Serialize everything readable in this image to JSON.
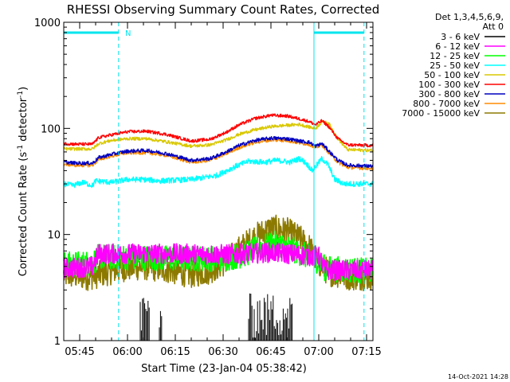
{
  "chart_data": {
    "type": "line",
    "title": "RHESSI Observing Summary Count Rates, Corrected",
    "xlabel": "Start Time (23-Jan-04 05:38:42)",
    "ylabel_main": "Corrected Count Rate (s",
    "ylabel_sup1": "-1",
    "ylabel_mid": " detector",
    "ylabel_sup2": "-1",
    "ylabel_end": ")",
    "yscale": "log",
    "ylim": [
      1,
      1000
    ],
    "xlim_min": [
      340,
      437
    ],
    "x_ticks": [
      {
        "value": 345,
        "label": "05:45"
      },
      {
        "value": 360,
        "label": "06:00"
      },
      {
        "value": 375,
        "label": "06:15"
      },
      {
        "value": 390,
        "label": "06:30"
      },
      {
        "value": 405,
        "label": "06:45"
      },
      {
        "value": 420,
        "label": "07:00"
      },
      {
        "value": 435,
        "label": "07:15"
      }
    ],
    "y_ticks": [
      {
        "value": 1,
        "label": "1"
      },
      {
        "value": 10,
        "label": "10"
      },
      {
        "value": 100,
        "label": "100"
      },
      {
        "value": 1000,
        "label": "1000"
      }
    ],
    "legend_header": [
      "Det 1,3,4,5,6,9,",
      "Att 0"
    ],
    "timestamp": "14-Oct-2021 14:28",
    "night_flag": "N",
    "markers": {
      "solid": [
        418.5
      ],
      "dashed": [
        357.2,
        434.2
      ],
      "night_bars": [
        [
          340,
          357.2
        ],
        [
          418.5,
          434.2
        ]
      ],
      "color": "#00e5ee"
    },
    "series": [
      {
        "name": "3 - 6 keV",
        "color": "#000000",
        "points": [
          [
            340,
            1
          ],
          [
            437,
            1
          ]
        ],
        "bursts": [
          [
            364,
            367
          ],
          [
            370,
            371
          ],
          [
            398,
            412
          ]
        ],
        "burst_range": [
          1,
          2.8
        ]
      },
      {
        "name": "6 - 12 keV",
        "color": "#ff00ff",
        "points": [
          [
            340,
            4.8
          ],
          [
            349,
            5
          ],
          [
            351,
            6.6
          ],
          [
            370,
            6.6
          ],
          [
            390,
            6.5
          ],
          [
            398,
            6.6
          ],
          [
            405,
            6.8
          ],
          [
            410,
            6.6
          ],
          [
            415,
            6.4
          ],
          [
            420,
            6.2
          ],
          [
            422,
            4.6
          ],
          [
            437,
            4.6
          ]
        ]
      },
      {
        "name": "12 - 25 keV",
        "color": "#00ff00",
        "points": [
          [
            340,
            5.2
          ],
          [
            349,
            5.4
          ],
          [
            351,
            6.2
          ],
          [
            370,
            6.0
          ],
          [
            390,
            5.9
          ],
          [
            396,
            6.4
          ],
          [
            402,
            7.6
          ],
          [
            406,
            8.2
          ],
          [
            411,
            7.4
          ],
          [
            415,
            6.5
          ],
          [
            420,
            5.6
          ],
          [
            422,
            4.8
          ],
          [
            437,
            4.5
          ]
        ]
      },
      {
        "name": "25 - 50 keV",
        "color": "#00ffff",
        "points": [
          [
            340,
            30
          ],
          [
            343,
            29
          ],
          [
            346,
            31
          ],
          [
            349,
            29
          ],
          [
            350,
            32
          ],
          [
            355,
            31
          ],
          [
            360,
            33
          ],
          [
            365,
            33
          ],
          [
            370,
            32
          ],
          [
            380,
            33
          ],
          [
            388,
            36
          ],
          [
            394,
            44
          ],
          [
            398,
            49
          ],
          [
            403,
            48
          ],
          [
            407,
            50
          ],
          [
            411,
            48
          ],
          [
            414,
            52
          ],
          [
            416,
            47
          ],
          [
            418,
            40
          ],
          [
            421,
            52
          ],
          [
            423,
            45
          ],
          [
            425,
            33
          ],
          [
            428,
            30
          ],
          [
            437,
            30
          ]
        ]
      },
      {
        "name": "50 - 100 keV",
        "color": "#d9c800",
        "points": [
          [
            340,
            64
          ],
          [
            344,
            64
          ],
          [
            349,
            64
          ],
          [
            351,
            72
          ],
          [
            355,
            77
          ],
          [
            360,
            80
          ],
          [
            366,
            80
          ],
          [
            372,
            75
          ],
          [
            380,
            68
          ],
          [
            386,
            70
          ],
          [
            391,
            78
          ],
          [
            395,
            88
          ],
          [
            400,
            97
          ],
          [
            405,
            104
          ],
          [
            410,
            107
          ],
          [
            414,
            109
          ],
          [
            417,
            103
          ],
          [
            419,
            100
          ],
          [
            421,
            115
          ],
          [
            423,
            113
          ],
          [
            426,
            80
          ],
          [
            429,
            63
          ],
          [
            437,
            62
          ]
        ]
      },
      {
        "name": "100 - 300 keV",
        "color": "#ff0000",
        "points": [
          [
            340,
            72
          ],
          [
            344,
            71
          ],
          [
            349,
            71
          ],
          [
            351,
            82
          ],
          [
            355,
            87
          ],
          [
            360,
            93
          ],
          [
            366,
            94
          ],
          [
            372,
            88
          ],
          [
            380,
            76
          ],
          [
            386,
            79
          ],
          [
            391,
            92
          ],
          [
            395,
            108
          ],
          [
            400,
            124
          ],
          [
            405,
            133
          ],
          [
            410,
            131
          ],
          [
            414,
            123
          ],
          [
            417,
            116
          ],
          [
            419,
            108
          ],
          [
            421,
            118
          ],
          [
            423,
            105
          ],
          [
            426,
            80
          ],
          [
            429,
            70
          ],
          [
            437,
            69
          ]
        ]
      },
      {
        "name": "300 - 800 keV",
        "color": "#0000c0",
        "points": [
          [
            340,
            48
          ],
          [
            344,
            47
          ],
          [
            349,
            47
          ],
          [
            351,
            53
          ],
          [
            355,
            57
          ],
          [
            360,
            61
          ],
          [
            366,
            62
          ],
          [
            372,
            58
          ],
          [
            380,
            50
          ],
          [
            386,
            52
          ],
          [
            391,
            60
          ],
          [
            395,
            69
          ],
          [
            400,
            77
          ],
          [
            405,
            81
          ],
          [
            410,
            80
          ],
          [
            414,
            76
          ],
          [
            417,
            74
          ],
          [
            419,
            68
          ],
          [
            421,
            72
          ],
          [
            423,
            62
          ],
          [
            426,
            50
          ],
          [
            429,
            45
          ],
          [
            437,
            44
          ]
        ]
      },
      {
        "name": "800 - 7000 keV",
        "color": "#ff8c00",
        "points": [
          [
            340,
            46
          ],
          [
            344,
            45
          ],
          [
            349,
            45
          ],
          [
            351,
            51
          ],
          [
            355,
            55
          ],
          [
            360,
            59
          ],
          [
            366,
            59
          ],
          [
            372,
            56
          ],
          [
            380,
            48
          ],
          [
            386,
            50
          ],
          [
            391,
            58
          ],
          [
            395,
            66
          ],
          [
            400,
            74
          ],
          [
            405,
            78
          ],
          [
            410,
            77
          ],
          [
            414,
            73
          ],
          [
            417,
            71
          ],
          [
            419,
            66
          ],
          [
            421,
            70
          ],
          [
            423,
            60
          ],
          [
            426,
            48
          ],
          [
            429,
            43
          ],
          [
            437,
            42
          ]
        ]
      },
      {
        "name": "7000 - 15000 keV",
        "color": "#8c7a00",
        "points": [
          [
            340,
            4.2
          ],
          [
            348,
            4.0
          ],
          [
            351,
            4.2
          ],
          [
            358,
            4.8
          ],
          [
            365,
            5.0
          ],
          [
            372,
            4.7
          ],
          [
            380,
            4.2
          ],
          [
            386,
            4.6
          ],
          [
            391,
            5.6
          ],
          [
            395,
            7.2
          ],
          [
            400,
            9.5
          ],
          [
            405,
            11.5
          ],
          [
            410,
            10.8
          ],
          [
            414,
            9.2
          ],
          [
            417,
            7.6
          ],
          [
            420,
            5.4
          ],
          [
            423,
            4.4
          ],
          [
            430,
            4.0
          ],
          [
            437,
            4.0
          ]
        ]
      }
    ]
  }
}
